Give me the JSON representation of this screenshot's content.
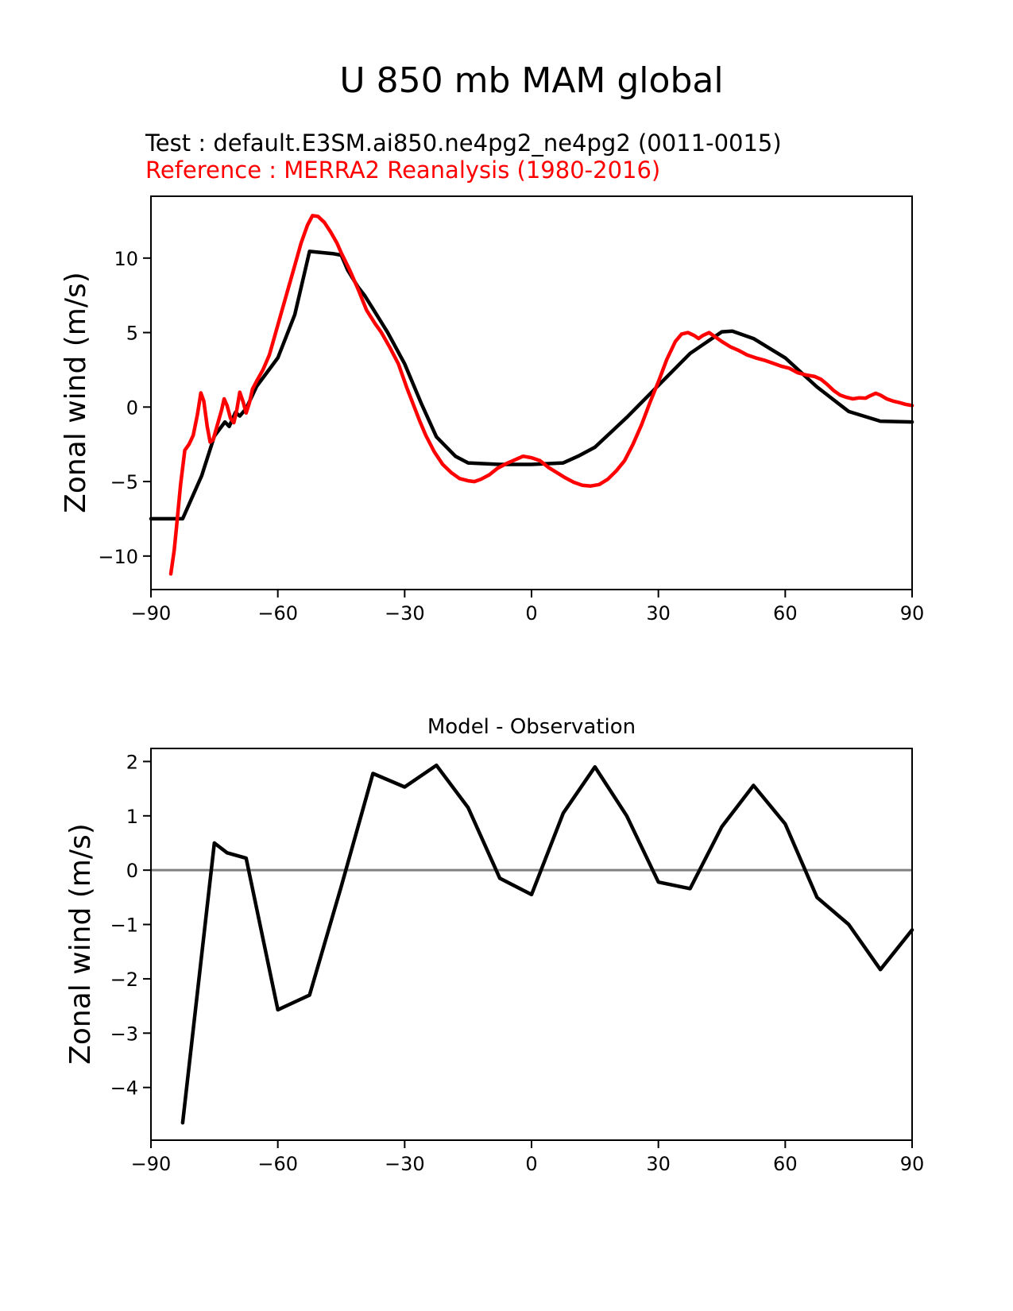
{
  "title": "U 850 mb MAM global",
  "legend": {
    "test_label": "Test : default.E3SM.ai850.ne4pg2_ne4pg2 (0011-0015)",
    "reference_label": "Reference : MERRA2 Reanalysis (1980-2016)",
    "test_color": "#000000",
    "reference_color": "#ff0000"
  },
  "axis_color": "#000000",
  "chart_data": [
    {
      "type": "line",
      "title": "",
      "xlabel": "",
      "ylabel": "Zonal wind (m/s)",
      "xlim": [
        -90,
        90
      ],
      "ylim": [
        -12.25,
        14.15
      ],
      "xticks": [
        -90,
        -60,
        -30,
        0,
        30,
        60,
        90
      ],
      "yticks": [
        -10,
        -5,
        0,
        5,
        10
      ],
      "grid": false,
      "legend_position": "above-top-left",
      "series": [
        {
          "key": "test",
          "name": "default.E3SM.ai850.ne4pg2_ne4pg2 (0011-0015)",
          "color": "#000000",
          "x": [
            -90,
            -82.5,
            -78,
            -75,
            -72.5,
            -71.5,
            -70,
            -69,
            -67.5,
            -65,
            -60,
            -56,
            -52.5,
            -47,
            -45,
            -43.5,
            -41,
            -39.5,
            -37.5,
            -34,
            -30,
            -26,
            -22.5,
            -18,
            -15,
            -7.5,
            0,
            7.5,
            11,
            15,
            22.5,
            30,
            37.5,
            45,
            47.5,
            52.5,
            60,
            67.5,
            75,
            82.5,
            90
          ],
          "y": [
            -7.5,
            -7.5,
            -4.6,
            -1.95,
            -1.0,
            -1.3,
            -0.35,
            -0.6,
            -0.1,
            1.4,
            3.3,
            6.2,
            10.45,
            10.3,
            10.2,
            9.2,
            8.05,
            7.5,
            6.6,
            5.0,
            2.9,
            0.2,
            -2.0,
            -3.3,
            -3.75,
            -3.85,
            -3.85,
            -3.75,
            -3.3,
            -2.7,
            -0.7,
            1.45,
            3.6,
            5.05,
            5.1,
            4.6,
            3.3,
            1.35,
            -0.3,
            -0.95,
            -1.0
          ]
        },
        {
          "key": "reference",
          "name": "MERRA2 Reanalysis (1980-2016)",
          "color": "#ff0000",
          "x": [
            -85.3,
            -84.5,
            -84,
            -83,
            -82,
            -81,
            -80,
            -79,
            -78.2,
            -77.5,
            -76.7,
            -76,
            -75.3,
            -74.3,
            -73.3,
            -72.7,
            -72,
            -71.2,
            -70.4,
            -69.7,
            -69,
            -68.2,
            -67.5,
            -66.7,
            -66,
            -65,
            -63.5,
            -62,
            -60.5,
            -59,
            -57.5,
            -56,
            -54.5,
            -53,
            -51.8,
            -50.5,
            -49,
            -47.5,
            -46,
            -45,
            -43,
            -41,
            -39,
            -37,
            -35.5,
            -33.5,
            -31.5,
            -29.5,
            -28,
            -26.5,
            -25,
            -23,
            -21,
            -19,
            -17,
            -15,
            -13.5,
            -12,
            -10,
            -8,
            -6,
            -4,
            -2,
            0,
            2,
            4,
            6,
            8,
            10,
            12,
            14,
            16,
            18,
            20,
            22,
            24,
            26,
            28,
            30,
            32,
            34,
            35.5,
            37,
            38.5,
            39.5,
            40.5,
            42,
            43.5,
            45,
            47,
            49,
            51,
            53,
            55,
            57,
            59,
            61,
            63,
            65,
            67,
            68.5,
            70,
            71.5,
            73,
            74.5,
            76,
            77.5,
            79,
            80,
            81.4,
            82.5,
            84,
            85.5,
            87,
            88.5,
            90
          ],
          "y": [
            -11.2,
            -9.6,
            -8.2,
            -5.2,
            -2.9,
            -2.5,
            -1.9,
            -0.5,
            0.95,
            0.4,
            -1.3,
            -2.35,
            -2.2,
            -1.2,
            -0.2,
            0.55,
            0.1,
            -0.75,
            -1.05,
            -0.2,
            1.0,
            0.35,
            -0.4,
            0.3,
            1.2,
            1.75,
            2.5,
            3.5,
            5.0,
            6.5,
            8.0,
            9.5,
            11.0,
            12.2,
            12.85,
            12.8,
            12.4,
            11.75,
            11.0,
            10.35,
            9.2,
            7.9,
            6.5,
            5.6,
            5.0,
            4.0,
            2.9,
            1.3,
            0.2,
            -0.9,
            -1.9,
            -3.0,
            -3.85,
            -4.4,
            -4.8,
            -4.95,
            -5.0,
            -4.85,
            -4.55,
            -4.1,
            -3.8,
            -3.55,
            -3.3,
            -3.4,
            -3.6,
            -4.05,
            -4.4,
            -4.75,
            -5.05,
            -5.25,
            -5.3,
            -5.2,
            -4.85,
            -4.3,
            -3.6,
            -2.5,
            -1.2,
            0.3,
            1.7,
            3.2,
            4.4,
            4.9,
            5.0,
            4.8,
            4.6,
            4.8,
            5.0,
            4.7,
            4.4,
            4.05,
            3.8,
            3.5,
            3.3,
            3.15,
            2.95,
            2.75,
            2.6,
            2.3,
            2.15,
            2.05,
            1.85,
            1.5,
            1.1,
            0.8,
            0.65,
            0.55,
            0.62,
            0.6,
            0.75,
            0.93,
            0.8,
            0.55,
            0.4,
            0.3,
            0.18,
            0.1
          ]
        }
      ]
    },
    {
      "type": "line",
      "title": "Model - Observation",
      "xlabel": "",
      "ylabel": "Zonal wind (m/s)",
      "xlim": [
        -90,
        90
      ],
      "ylim": [
        -4.97,
        2.24
      ],
      "xticks": [
        -90,
        -60,
        -30,
        0,
        30,
        60,
        90
      ],
      "yticks": [
        -4,
        -3,
        -2,
        -1,
        0,
        1,
        2
      ],
      "grid": false,
      "zero_line": {
        "value": 0,
        "color": "#808080"
      },
      "series": [
        {
          "key": "difference",
          "name": "Model - Observation",
          "color": "#000000",
          "x": [
            -82.5,
            -75,
            -72,
            -67.5,
            -60,
            -52.5,
            -45,
            -37.5,
            -30,
            -22.5,
            -15,
            -7.5,
            0,
            7.5,
            15,
            22.5,
            30,
            37.5,
            45,
            52.5,
            60,
            67.5,
            75,
            82.5,
            90
          ],
          "y": [
            -4.65,
            0.5,
            0.32,
            0.22,
            -2.57,
            -2.3,
            -0.3,
            1.78,
            1.53,
            1.93,
            1.15,
            -0.15,
            -0.45,
            1.05,
            1.9,
            1.0,
            -0.22,
            -0.34,
            0.8,
            1.56,
            0.85,
            -0.5,
            -1.0,
            -1.83,
            -1.1
          ]
        }
      ]
    }
  ]
}
